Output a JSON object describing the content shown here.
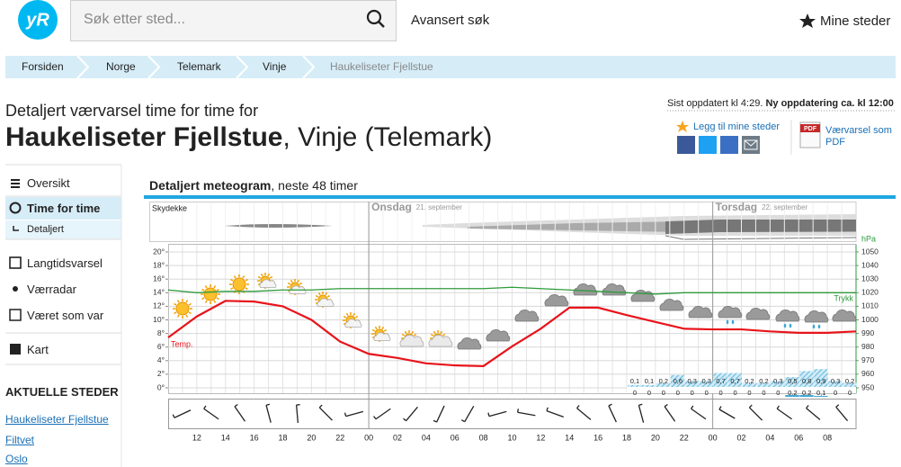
{
  "header": {
    "logo": "yR",
    "search_placeholder": "Søk etter sted...",
    "advanced_search": "Avansert søk",
    "my_places": "Mine steder"
  },
  "breadcrumb": [
    "Forsiden",
    "Norge",
    "Telemark",
    "Vinje",
    "Haukeliseter Fjellstue"
  ],
  "heading": {
    "intro": "Detaljert værvarsel time for time for",
    "place": "Haukeliseter Fjellstue",
    "region": ", Vinje (Telemark)"
  },
  "updated": {
    "last": "Sist oppdatert kl 4:29.",
    "next": "Ny oppdatering ca. kl 12:00"
  },
  "actions": {
    "add_place": "Legg til mine steder",
    "pdf_icon": "PDF",
    "pdf": "Værvarsel som PDF"
  },
  "sidebar": {
    "menu": [
      "Oversikt",
      "Time for time",
      "Detaljert",
      "Langtidsvarsel",
      "Værradar",
      "Været som var",
      "Kart"
    ],
    "places_title": "AKTUELLE STEDER",
    "places": [
      "Haukeliseter Fjellstue",
      "Filtvet",
      "Oslo"
    ]
  },
  "chart_data": {
    "type": "line",
    "title": "Detaljert meteogram",
    "subtitle": ", neste 48 timer",
    "cloud_label": "Skydekke",
    "days": [
      {
        "name": "Onsdag",
        "date": "21. september"
      },
      {
        "name": "Torsdag",
        "date": "22. september"
      }
    ],
    "categories": [
      null,
      "12",
      "14",
      "16",
      "18",
      "20",
      "22",
      "00",
      "02",
      "04",
      "06",
      "08",
      "10",
      "12",
      "14",
      "16",
      "18",
      "20",
      "22",
      "00",
      "02",
      "04",
      "06",
      "08",
      null
    ],
    "ylim": [
      0,
      20
    ],
    "yticks": [
      {
        "value": 0,
        "label": "0°"
      },
      {
        "value": 2,
        "label": "2°"
      },
      {
        "value": 4,
        "label": "4°"
      },
      {
        "value": 6,
        "label": "6°"
      },
      {
        "value": 8,
        "label": "8°"
      },
      {
        "value": 10,
        "label": "10°"
      },
      {
        "value": 12,
        "label": "12°"
      },
      {
        "value": 14,
        "label": "14°"
      },
      {
        "value": 16,
        "label": "16°"
      },
      {
        "value": 18,
        "label": "18°"
      },
      {
        "value": 20,
        "label": "20°"
      }
    ],
    "y2lim": [
      950,
      1050
    ],
    "y2ticks": [
      950,
      960,
      970,
      980,
      990,
      1000,
      1010,
      1020,
      1030,
      1040,
      1050
    ],
    "y2_label": "hPa",
    "grid": true,
    "series": [
      {
        "name": "Temp.",
        "color": "#e8141b",
        "values": [
          7.4,
          10.5,
          12.8,
          12.7,
          12,
          10,
          6.8,
          5,
          4.4,
          3.6,
          3.3,
          3.2,
          6.1,
          8.7,
          11.8,
          11.8,
          10.7,
          9.7,
          8.7,
          8.6,
          8.6,
          8.3,
          8.1,
          8.1,
          8.3
        ]
      },
      {
        "name": "Trykk",
        "color": "#2e9b3b",
        "axis": "y2",
        "values": [
          1022,
          1020,
          1021,
          1021,
          1022,
          1022,
          1023,
          1023,
          1023,
          1023,
          1023,
          1023,
          1024,
          1023,
          1022,
          1021,
          1020,
          1019,
          1020,
          1020,
          1020,
          1020,
          1020,
          1020,
          1020
        ]
      }
    ],
    "precipitation": {
      "color": "#3fa9d6",
      "values": [
        0.1,
        0.1,
        0.2,
        0.6,
        0.3,
        0.3,
        0.7,
        0.7,
        0.2,
        0.2,
        0.3,
        0.5,
        0.8,
        0.9,
        0.3,
        0.2
      ],
      "value_labels": [
        "0,1",
        "0,1",
        "0,2",
        "0,6",
        "0,3",
        "0,3",
        "0,7",
        "0,7",
        "0,2",
        "0,2",
        "0,3",
        "0,5",
        "0,8",
        "0,9",
        "0,3",
        "0,2"
      ]
    },
    "precipitation_min": {
      "values": [
        0,
        0,
        0,
        0,
        0,
        0,
        0,
        0,
        0,
        0,
        0,
        0.2,
        0.2,
        0.1,
        0,
        0
      ],
      "value_labels": [
        "0",
        "0",
        "0",
        "0",
        "0",
        "0",
        "0",
        "0",
        "0",
        "0",
        "0",
        "0,2",
        "0,2",
        "0,1",
        "0",
        "0"
      ]
    }
  }
}
